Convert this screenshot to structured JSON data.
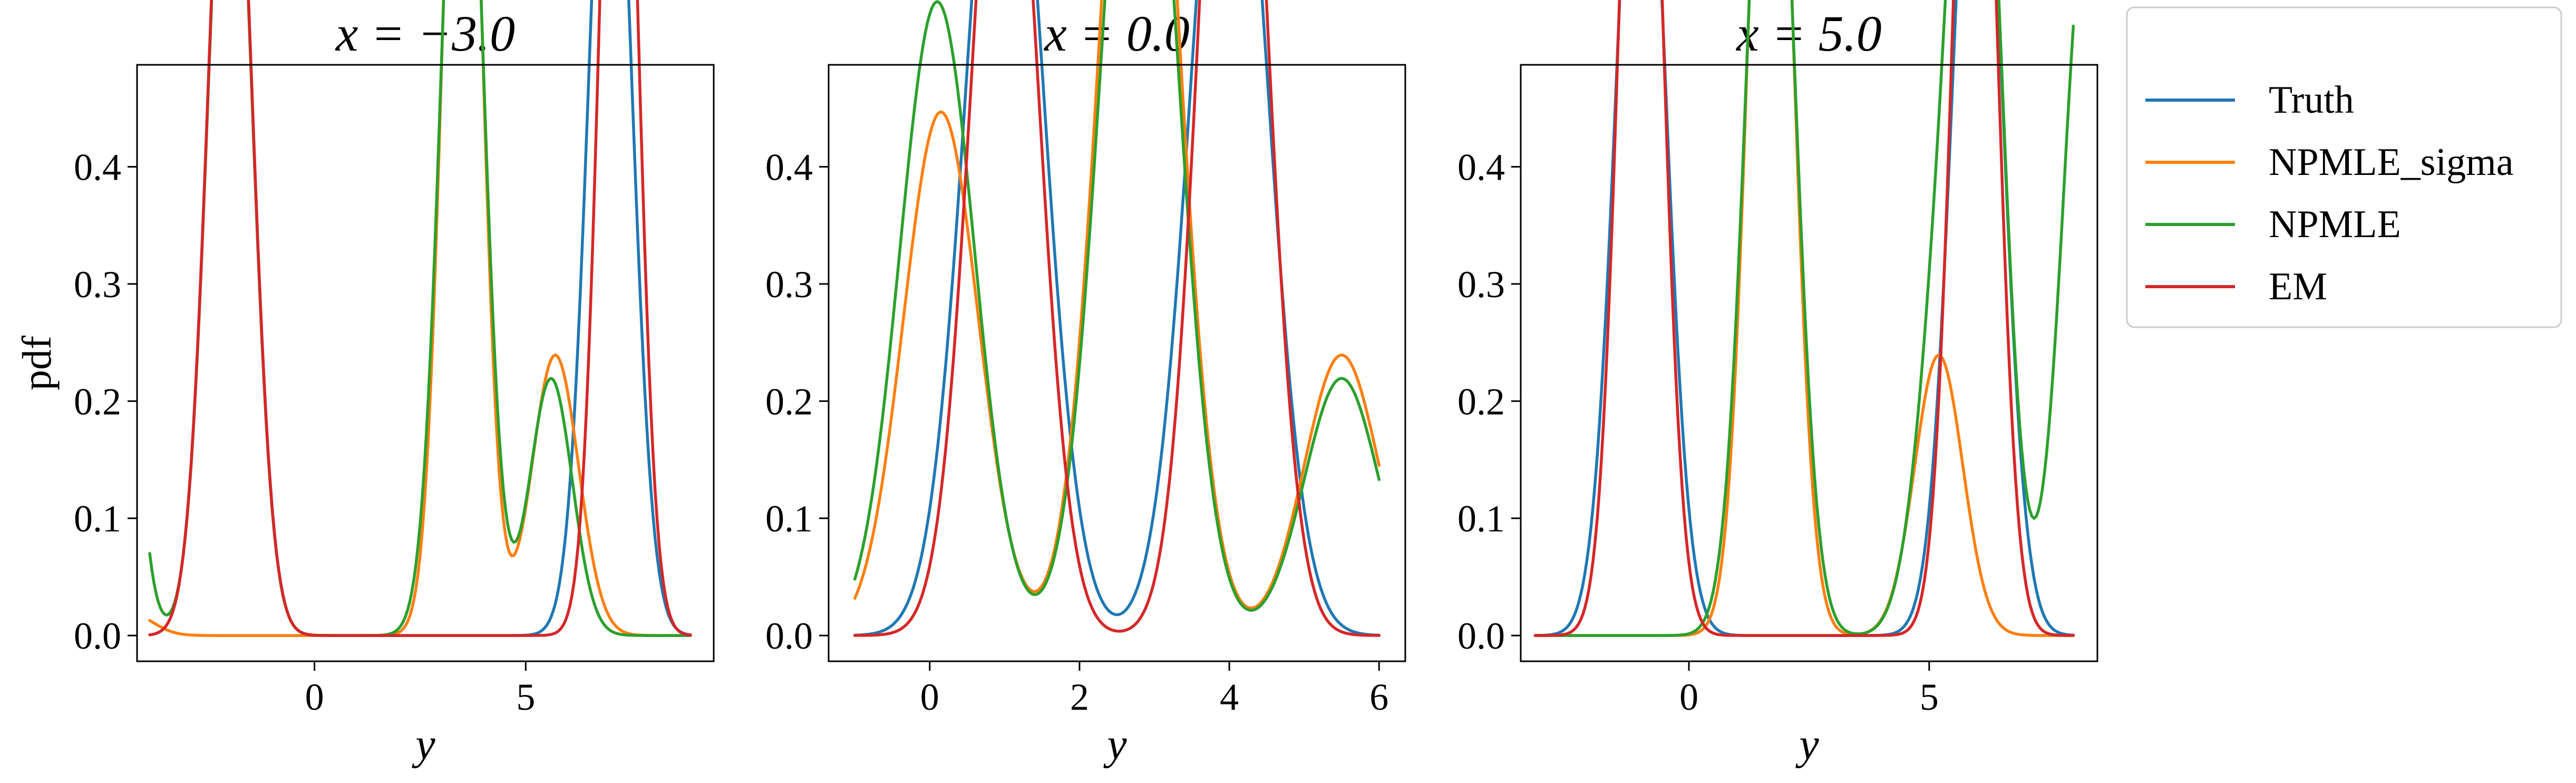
{
  "figure": {
    "ylabel": "pdf",
    "legend": {
      "placement": "outside-right-top",
      "entries": [
        {
          "name": "Truth",
          "color": "#1f77b4"
        },
        {
          "name": "NPMLE_sigma",
          "color": "#ff7f0e"
        },
        {
          "name": "NPMLE",
          "color": "#2ca02c"
        },
        {
          "name": "EM",
          "color": "#d62728"
        }
      ]
    }
  },
  "chart_data": [
    {
      "type": "line",
      "title": "x = −3.0",
      "xlabel": "y",
      "ylabel": "pdf",
      "xlim": [
        -4.2,
        9.45
      ],
      "ylim": [
        -0.022,
        0.487
      ],
      "xticks": [
        0,
        5
      ],
      "xtick_labels": [
        "0",
        "5"
      ],
      "yticks": [
        0.0,
        0.1,
        0.2,
        0.3,
        0.4
      ],
      "ytick_labels": [
        "0.0",
        "0.1",
        "0.2",
        "0.3",
        "0.4"
      ],
      "grid": false,
      "x_range": [
        -3.9,
        8.9
      ],
      "series": [
        {
          "name": "Truth",
          "color": "#1f77b4",
          "components": [
            {
              "w": 1.0,
              "mu": -2.0,
              "sd": 0.5
            },
            {
              "w": 1.0,
              "mu": 7.0,
              "sd": 0.5
            }
          ]
        },
        {
          "name": "NPMLE_sigma",
          "color": "#ff7f0e",
          "components": [
            {
              "w": 1.0,
              "mu": 3.5,
              "sd": 0.44
            },
            {
              "w": 0.33,
              "mu": 5.7,
              "sd": 0.55
            },
            {
              "w": 0.022,
              "mu": -4.3,
              "sd": 0.5
            }
          ]
        },
        {
          "name": "NPMLE",
          "color": "#2ca02c",
          "components": [
            {
              "w": 0.99,
              "mu": -2.0,
              "sd": 0.5
            },
            {
              "w": 1.0,
              "mu": 3.5,
              "sd": 0.48
            },
            {
              "w": 0.275,
              "mu": 5.6,
              "sd": 0.5
            },
            {
              "w": 0.98,
              "mu": -5.0,
              "sd": 0.5
            }
          ]
        },
        {
          "name": "EM",
          "color": "#d62728",
          "components": [
            {
              "w": 1.0,
              "mu": -2.0,
              "sd": 0.5
            },
            {
              "w": 1.0,
              "mu": 7.2,
              "sd": 0.43
            }
          ]
        }
      ]
    },
    {
      "type": "line",
      "title": "x = 0.0",
      "xlabel": "y",
      "ylabel": "",
      "xlim": [
        -1.35,
        6.35
      ],
      "ylim": [
        -0.022,
        0.487
      ],
      "xticks": [
        0,
        2,
        4,
        6
      ],
      "xtick_labels": [
        "0",
        "2",
        "4",
        "6"
      ],
      "yticks": [
        0.0,
        0.1,
        0.2,
        0.3,
        0.4
      ],
      "ytick_labels": [
        "0.0",
        "0.1",
        "0.2",
        "0.3",
        "0.4"
      ],
      "grid": false,
      "x_range": [
        -1.0,
        6.0
      ],
      "series": [
        {
          "name": "Truth",
          "color": "#1f77b4",
          "components": [
            {
              "w": 1.0,
              "mu": 1.0,
              "sd": 0.5
            },
            {
              "w": 1.0,
              "mu": 4.0,
              "sd": 0.5
            }
          ]
        },
        {
          "name": "NPMLE_sigma",
          "color": "#ff7f0e",
          "components": [
            {
              "w": 0.56,
              "mu": 0.15,
              "sd": 0.5
            },
            {
              "w": 1.13,
              "mu": 2.8,
              "sd": 0.5
            },
            {
              "w": 0.3,
              "mu": 5.5,
              "sd": 0.5
            }
          ]
        },
        {
          "name": "NPMLE",
          "color": "#2ca02c",
          "components": [
            {
              "w": 0.678,
              "mu": 0.1,
              "sd": 0.5
            },
            {
              "w": 1.04,
              "mu": 2.8,
              "sd": 0.5
            },
            {
              "w": 0.275,
              "mu": 5.5,
              "sd": 0.5
            }
          ]
        },
        {
          "name": "EM",
          "color": "#d62728",
          "components": [
            {
              "w": 0.87,
              "mu": 1.0,
              "sd": 0.44
            },
            {
              "w": 1.0,
              "mu": 4.05,
              "sd": 0.43
            }
          ]
        }
      ]
    },
    {
      "type": "line",
      "title": "x = 5.0",
      "xlabel": "y",
      "ylabel": "",
      "xlim": [
        -3.5,
        8.5
      ],
      "ylim": [
        -0.022,
        0.487
      ],
      "xticks": [
        0,
        5
      ],
      "xtick_labels": [
        "0",
        "5"
      ],
      "yticks": [
        0.0,
        0.1,
        0.2,
        0.3,
        0.4
      ],
      "ytick_labels": [
        "0.0",
        "0.1",
        "0.2",
        "0.3",
        "0.4"
      ],
      "grid": false,
      "x_range": [
        -3.2,
        8.0
      ],
      "series": [
        {
          "name": "Truth",
          "color": "#1f77b4",
          "components": [
            {
              "w": 1.0,
              "mu": -1.0,
              "sd": 0.5
            },
            {
              "w": 1.0,
              "mu": 6.0,
              "sd": 0.5
            }
          ]
        },
        {
          "name": "NPMLE_sigma",
          "color": "#ff7f0e",
          "components": [
            {
              "w": 1.0,
              "mu": 1.7,
              "sd": 0.44
            },
            {
              "w": 0.3,
              "mu": 5.2,
              "sd": 0.5
            }
          ]
        },
        {
          "name": "NPMLE",
          "color": "#2ca02c",
          "components": [
            {
              "w": 1.0,
              "mu": 1.7,
              "sd": 0.48
            },
            {
              "w": 0.275,
              "mu": 5.2,
              "sd": 0.5
            },
            {
              "w": 1.0,
              "mu": 6.0,
              "sd": 0.5
            },
            {
              "w": 0.78,
              "mu": 8.3,
              "sd": 0.5
            }
          ]
        },
        {
          "name": "EM",
          "color": "#d62728",
          "components": [
            {
              "w": 1.0,
              "mu": -1.0,
              "sd": 0.43
            },
            {
              "w": 1.0,
              "mu": 5.95,
              "sd": 0.43
            }
          ]
        }
      ]
    }
  ]
}
